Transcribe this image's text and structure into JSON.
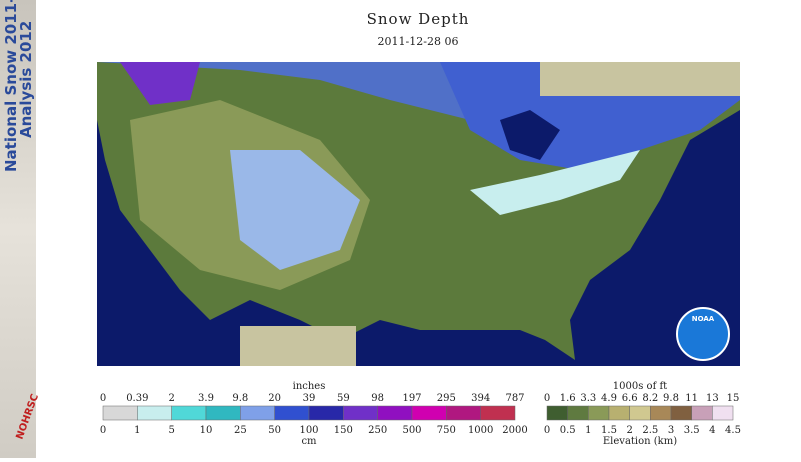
{
  "sidebar": {
    "line1": "National Snow 2011-",
    "line2": "Analysis 2012",
    "logo": "NOHRSC"
  },
  "header": {
    "title": "Snow Depth",
    "date": "2011-12-28 06"
  },
  "map": {
    "logo": "NOAA"
  },
  "snow_legend": {
    "top_title": "inches",
    "bottom_title": "cm",
    "top_labels": [
      "0",
      "0.39",
      "2",
      "3.9",
      "9.8",
      "20",
      "39",
      "59",
      "98",
      "197",
      "295",
      "394",
      "787"
    ],
    "bottom_labels": [
      "0",
      "1",
      "5",
      "10",
      "25",
      "50",
      "100",
      "150",
      "250",
      "500",
      "750",
      "1000",
      "2000"
    ],
    "colors": [
      "#d8d8d8",
      "#c8eeee",
      "#50d8d8",
      "#30b8c0",
      "#7fa0e8",
      "#3050d0",
      "#2828a8",
      "#7030c8",
      "#9010c0",
      "#d000b0",
      "#b01880",
      "#c03050"
    ]
  },
  "elevation_legend": {
    "top_title": "1000s of ft",
    "bottom_title": "Elevation (km)",
    "top_labels": [
      "0",
      "1.6",
      "3.3",
      "4.9",
      "6.6",
      "8.2",
      "9.8",
      "11",
      "13",
      "15"
    ],
    "bottom_labels": [
      "0",
      "0.5",
      "1",
      "1.5",
      "2",
      "2.5",
      "3",
      "3.5",
      "4",
      "4.5"
    ],
    "colors": [
      "#3f5e30",
      "#5f7a40",
      "#8a9a58",
      "#b8b070",
      "#d0c890",
      "#a88858",
      "#806040",
      "#c8a0b8",
      "#f0e0f0"
    ]
  }
}
